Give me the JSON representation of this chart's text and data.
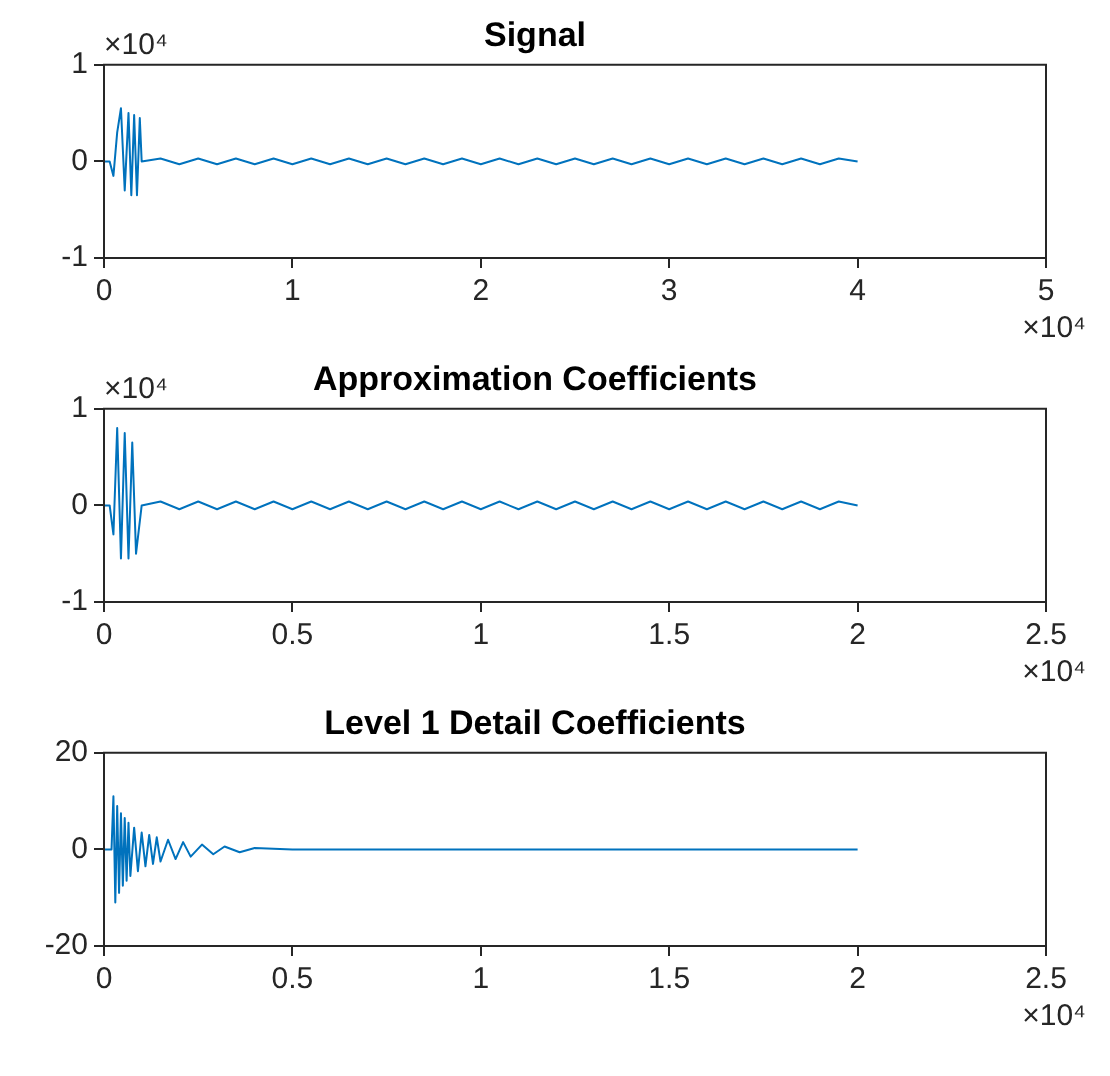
{
  "chart_data": [
    {
      "type": "line",
      "title": "Signal",
      "annotations": [
        "×10⁴",
        "×10⁴"
      ],
      "marker": "none",
      "grid": false,
      "xlim": [
        0,
        5
      ],
      "xticks": [
        0,
        1,
        2,
        3,
        4,
        5
      ],
      "ylim": [
        -1,
        1
      ],
      "yticks": [
        -1,
        0,
        1
      ],
      "series": [
        {
          "color": "#0072bd",
          "x": [
            0,
            0.03,
            0.05,
            0.07,
            0.09,
            0.11,
            0.13,
            0.145,
            0.16,
            0.175,
            0.19,
            0.2,
            0.3,
            0.4,
            0.5,
            0.6,
            0.7,
            0.8,
            0.9,
            1.0,
            1.1,
            1.2,
            1.3,
            1.4,
            1.5,
            1.6,
            1.7,
            1.8,
            1.9,
            2.0,
            2.1,
            2.2,
            2.3,
            2.4,
            2.5,
            2.6,
            2.7,
            2.8,
            2.9,
            3.0,
            3.1,
            3.2,
            3.3,
            3.4,
            3.5,
            3.6,
            3.7,
            3.8,
            3.9,
            4.0
          ],
          "values": [
            0,
            0,
            -0.15,
            0.3,
            0.55,
            -0.3,
            0.5,
            -0.35,
            0.48,
            -0.35,
            0.45,
            0,
            0.03,
            -0.03,
            0.03,
            -0.03,
            0.03,
            -0.03,
            0.03,
            -0.03,
            0.03,
            -0.03,
            0.03,
            -0.03,
            0.03,
            -0.03,
            0.03,
            -0.03,
            0.03,
            -0.03,
            0.03,
            -0.03,
            0.03,
            -0.03,
            0.03,
            -0.03,
            0.03,
            -0.03,
            0.03,
            -0.03,
            0.03,
            -0.03,
            0.03,
            -0.03,
            0.03,
            -0.03,
            0.03,
            -0.03,
            0.03,
            0
          ]
        }
      ]
    },
    {
      "type": "line",
      "title": "Approximation Coefficients",
      "annotations": [
        "×10⁴",
        "×10⁴"
      ],
      "marker": "none",
      "grid": false,
      "xlim": [
        0,
        2.5
      ],
      "xticks": [
        0,
        0.5,
        1,
        1.5,
        2,
        2.5
      ],
      "ylim": [
        -1,
        1
      ],
      "yticks": [
        -1,
        0,
        1
      ],
      "series": [
        {
          "color": "#0072bd",
          "x": [
            0,
            0.015,
            0.025,
            0.035,
            0.045,
            0.055,
            0.065,
            0.075,
            0.085,
            0.1,
            0.15,
            0.2,
            0.25,
            0.3,
            0.35,
            0.4,
            0.45,
            0.5,
            0.55,
            0.6,
            0.65,
            0.7,
            0.75,
            0.8,
            0.85,
            0.9,
            0.95,
            1.0,
            1.05,
            1.1,
            1.15,
            1.2,
            1.25,
            1.3,
            1.35,
            1.4,
            1.45,
            1.5,
            1.55,
            1.6,
            1.65,
            1.7,
            1.75,
            1.8,
            1.85,
            1.9,
            1.95,
            2.0
          ],
          "values": [
            0,
            0,
            -0.3,
            0.8,
            -0.55,
            0.75,
            -0.55,
            0.65,
            -0.5,
            0,
            0.04,
            -0.04,
            0.04,
            -0.04,
            0.04,
            -0.04,
            0.04,
            -0.04,
            0.04,
            -0.04,
            0.04,
            -0.04,
            0.04,
            -0.04,
            0.04,
            -0.04,
            0.04,
            -0.04,
            0.04,
            -0.04,
            0.04,
            -0.04,
            0.04,
            -0.04,
            0.04,
            -0.04,
            0.04,
            -0.04,
            0.04,
            -0.04,
            0.04,
            -0.04,
            0.04,
            -0.04,
            0.04,
            -0.04,
            0.04,
            0
          ]
        }
      ]
    },
    {
      "type": "line",
      "title": "Level 1 Detail Coefficients",
      "annotations": [
        "×10⁴"
      ],
      "marker": "none",
      "grid": false,
      "xlim": [
        0,
        2.5
      ],
      "xticks": [
        0,
        0.5,
        1,
        1.5,
        2,
        2.5
      ],
      "ylim": [
        -20,
        20
      ],
      "yticks": [
        -20,
        0,
        20
      ],
      "series": [
        {
          "color": "#0072bd",
          "x": [
            0,
            0.02,
            0.025,
            0.03,
            0.035,
            0.04,
            0.045,
            0.05,
            0.055,
            0.06,
            0.065,
            0.07,
            0.08,
            0.09,
            0.1,
            0.11,
            0.12,
            0.13,
            0.14,
            0.15,
            0.17,
            0.19,
            0.21,
            0.23,
            0.26,
            0.29,
            0.32,
            0.36,
            0.4,
            0.5,
            1.0,
            1.5,
            2.0
          ],
          "values": [
            0,
            0,
            11,
            -11,
            9,
            -9,
            7.5,
            -7.5,
            6.5,
            -6.5,
            5.5,
            -5.5,
            4.5,
            -4.5,
            3.5,
            -3.5,
            3,
            -3,
            2.5,
            -2.5,
            2,
            -2,
            1.5,
            -1.5,
            1,
            -1,
            0.6,
            -0.6,
            0.3,
            0,
            0,
            0,
            0
          ]
        }
      ]
    }
  ]
}
